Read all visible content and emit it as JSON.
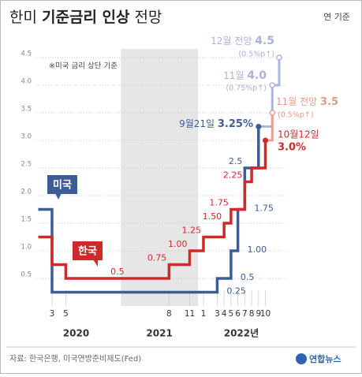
{
  "chart_data": {
    "type": "step",
    "title": [
      "한미 ",
      "기준금리 인상",
      " 전망"
    ],
    "unit_note": "연 기준",
    "note": "※미국 금리 상단 기준",
    "source": "자료: 한국은행, 미국연방준비제도(Fed)",
    "logo": "연합뉴스",
    "ylim": [
      0,
      4.5
    ],
    "yticks": [
      0.5,
      {
        "value": 1,
        "label": "1.0"
      },
      1.5,
      {
        "value": 2,
        "label": "2.0"
      },
      2.5,
      {
        "value": 3,
        "label": "3.0"
      },
      3.5,
      {
        "value": 4,
        "label": "4.0"
      },
      4.5
    ],
    "xlim": [
      0,
      36
    ],
    "xticks": [
      {
        "value": 2,
        "label": "3"
      },
      {
        "value": 4,
        "label": "5"
      },
      {
        "value": 19,
        "label": "8"
      },
      {
        "value": 22,
        "label": "11"
      },
      {
        "value": 24,
        "label": "1"
      },
      {
        "value": 26,
        "label": "3"
      },
      {
        "value": 27,
        "label": "4"
      },
      {
        "value": 28,
        "label": "5"
      },
      {
        "value": 29,
        "label": "6"
      },
      {
        "value": 30,
        "label": "7"
      },
      {
        "value": 31,
        "label": "8"
      },
      {
        "value": 32,
        "label": "9"
      },
      {
        "value": 33,
        "label": "10"
      }
    ],
    "x_groups": [
      "2020",
      "2021",
      "2022년"
    ],
    "grid": true,
    "series": [
      {
        "name": "미국",
        "color": "#3d5d96",
        "projection_color": "#adb6d8",
        "x": [
          0,
          2,
          26,
          28,
          29,
          30,
          32
        ],
        "values": [
          1.75,
          0.25,
          0.5,
          1.0,
          1.75,
          2.5,
          3.25
        ],
        "value_labels": [
          null,
          "0.25",
          "0.5",
          "1.00",
          "1.75",
          "2.5",
          null
        ],
        "projection_x": [
          34,
          35
        ],
        "projection_values": [
          4.0,
          4.5
        ]
      },
      {
        "name": "한국",
        "color": "#cf2a2a",
        "projection_color": "#e9a093",
        "x": [
          0,
          2,
          4,
          19,
          22,
          24,
          27,
          28,
          30,
          31,
          33
        ],
        "values": [
          1.25,
          0.75,
          0.5,
          0.75,
          1.0,
          1.25,
          1.5,
          1.75,
          2.25,
          2.5,
          3.0
        ],
        "value_labels": [
          null,
          null,
          "0.5",
          "0.75",
          "1.00",
          "1.25",
          "1.50",
          "1.75",
          "2.25",
          null,
          null
        ],
        "projection_x": [
          34
        ],
        "projection_values": [
          3.5
        ]
      }
    ],
    "annotations": [
      {
        "label": "12월 전망 ",
        "value": "4.5",
        "note": "(0.5%p↑)"
      },
      {
        "label": "11월 ",
        "value": "4.0",
        "note": "(0.75%p↑)"
      },
      {
        "label": "9월21일 ",
        "value": "3.25%"
      },
      {
        "label": "11월 전망 ",
        "value": "3.5",
        "note": "(0.5%p↑)"
      },
      {
        "label": "10월12일",
        "value": "3.0%"
      }
    ]
  }
}
